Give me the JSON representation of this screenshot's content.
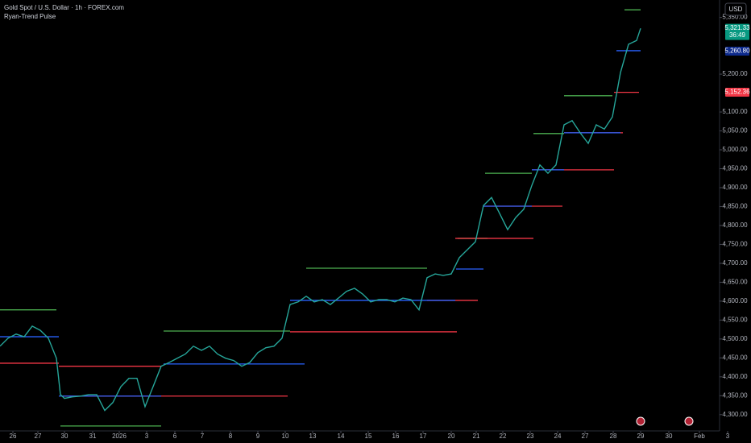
{
  "chart_data": {
    "type": "line",
    "title": "Gold Spot / U.S. Dollar · 1h · FOREX.com",
    "indicator": "Ryan-Trend Pulse",
    "currency": "USD",
    "countdown": "36:49",
    "color": "#26a69a",
    "x": [
      0,
      1,
      2,
      3,
      4,
      5,
      6,
      7,
      7.5,
      8,
      9,
      10,
      11,
      12,
      13,
      14,
      15,
      16,
      17,
      18,
      19,
      20,
      21,
      22,
      23,
      24,
      25,
      26,
      27,
      28,
      29,
      30,
      31,
      32,
      33,
      34,
      35,
      36,
      37,
      38,
      39,
      40,
      41,
      42,
      43,
      44,
      45,
      46,
      47,
      48,
      49,
      50,
      51,
      52,
      53,
      54,
      55,
      56,
      57,
      58,
      59,
      60,
      61,
      62,
      63,
      64,
      65,
      66,
      67,
      68,
      69,
      70,
      71,
      72,
      73,
      74,
      75,
      76,
      77,
      78,
      79,
      79.5
    ],
    "values": [
      4481,
      4502,
      4513,
      4506,
      4534,
      4523,
      4502,
      4449,
      4353,
      4343,
      4347,
      4349,
      4353,
      4353,
      4311,
      4332,
      4374,
      4396,
      4396,
      4321,
      4374,
      4428,
      4438,
      4449,
      4460,
      4481,
      4470,
      4481,
      4460,
      4449,
      4443,
      4428,
      4438,
      4464,
      4477,
      4481,
      4502,
      4591,
      4598,
      4613,
      4598,
      4604,
      4591,
      4608,
      4626,
      4634,
      4619,
      4598,
      4604,
      4604,
      4598,
      4608,
      4604,
      4577,
      4662,
      4672,
      4668,
      4672,
      4715,
      4736,
      4757,
      4853,
      4874,
      4832,
      4789,
      4821,
      4843,
      4906,
      4960,
      4938,
      4960,
      5066,
      5077,
      5045,
      5017,
      5066,
      5055,
      5087,
      5204,
      5279,
      5289,
      5321
    ],
    "levels": [
      {
        "x": [
          0,
          7
        ],
        "value": 4577,
        "color": "#4caf50"
      },
      {
        "x": [
          7.5,
          20
        ],
        "value": 4270,
        "color": "#4caf50"
      },
      {
        "x": [
          20.3,
          36
        ],
        "value": 4521,
        "color": "#4caf50"
      },
      {
        "x": [
          38,
          53
        ],
        "value": 4687,
        "color": "#4caf50"
      },
      {
        "x": [
          56.8,
          60.5
        ],
        "value": 4766,
        "color": "#4caf50"
      },
      {
        "x": [
          60.2,
          66
        ],
        "value": 4938,
        "color": "#4caf50"
      },
      {
        "x": [
          66.2,
          70
        ],
        "value": 5043,
        "color": "#4caf50"
      },
      {
        "x": [
          70,
          76
        ],
        "value": 5143,
        "color": "#4caf50"
      },
      {
        "x": [
          77.5,
          79.5
        ],
        "value": 5370,
        "color": "#4caf50"
      },
      {
        "x": [
          0,
          7.3
        ],
        "value": 4436,
        "color": "#f23645"
      },
      {
        "x": [
          7.3,
          20
        ],
        "value": 4428,
        "color": "#f23645"
      },
      {
        "x": [
          7.8,
          35.7
        ],
        "value": 4349,
        "color": "#f23645"
      },
      {
        "x": [
          36,
          56.7
        ],
        "value": 4519,
        "color": "#f23645"
      },
      {
        "x": [
          53,
          59.3
        ],
        "value": 4602,
        "color": "#f23645"
      },
      {
        "x": [
          56.5,
          66.2
        ],
        "value": 4766,
        "color": "#f23645"
      },
      {
        "x": [
          60,
          69.8
        ],
        "value": 4851,
        "color": "#f23645"
      },
      {
        "x": [
          66,
          76.2
        ],
        "value": 4947,
        "color": "#f23645"
      },
      {
        "x": [
          70,
          77.3
        ],
        "value": 5045,
        "color": "#f23645"
      },
      {
        "x": [
          76.2,
          79.3
        ],
        "value": 5152,
        "color": "#f23645"
      },
      {
        "x": [
          0,
          7.3
        ],
        "value": 4506,
        "color": "#2962ff"
      },
      {
        "x": [
          7.3,
          20
        ],
        "value": 4349,
        "color": "#2962ff"
      },
      {
        "x": [
          20.3,
          37.8
        ],
        "value": 4434,
        "color": "#2962ff"
      },
      {
        "x": [
          36,
          56.5
        ],
        "value": 4602,
        "color": "#2962ff"
      },
      {
        "x": [
          56.6,
          60
        ],
        "value": 4685,
        "color": "#2962ff"
      },
      {
        "x": [
          60,
          66
        ],
        "value": 4851,
        "color": "#2962ff"
      },
      {
        "x": [
          66,
          70
        ],
        "value": 4947,
        "color": "#2962ff"
      },
      {
        "x": [
          70,
          77
        ],
        "value": 5045,
        "color": "#2962ff"
      },
      {
        "x": [
          76.5,
          79.5
        ],
        "value": 5262,
        "color": "#2962ff"
      }
    ],
    "price_labels": [
      {
        "value": 5321.33,
        "label": "5,321.33",
        "color": "#089981"
      },
      {
        "value": 5260.8,
        "label": "5,260.80",
        "color": "#0d2a8c"
      },
      {
        "value": 5152.36,
        "label": "5,152.36",
        "color": "#f23645"
      }
    ],
    "xlim": [
      0,
      93.2
    ],
    "xticks": [
      {
        "value": 1.6,
        "label": "26"
      },
      {
        "value": 4.7,
        "label": "27"
      },
      {
        "value": 8.0,
        "label": "30"
      },
      {
        "value": 11.5,
        "label": "31"
      },
      {
        "value": 14.8,
        "label": "2026"
      },
      {
        "value": 18.2,
        "label": "3"
      },
      {
        "value": 21.7,
        "label": "6"
      },
      {
        "value": 25.1,
        "label": "7"
      },
      {
        "value": 28.6,
        "label": "8"
      },
      {
        "value": 32.0,
        "label": "9"
      },
      {
        "value": 35.4,
        "label": "10"
      },
      {
        "value": 38.8,
        "label": "13"
      },
      {
        "value": 42.3,
        "label": "14"
      },
      {
        "value": 45.7,
        "label": "15"
      },
      {
        "value": 49.1,
        "label": "16"
      },
      {
        "value": 52.5,
        "label": "17"
      },
      {
        "value": 56.0,
        "label": "20"
      },
      {
        "value": 59.1,
        "label": "21"
      },
      {
        "value": 62.4,
        "label": "22"
      },
      {
        "value": 65.8,
        "label": "23"
      },
      {
        "value": 69.2,
        "label": "24"
      },
      {
        "value": 72.6,
        "label": "27"
      },
      {
        "value": 76.1,
        "label": "28"
      },
      {
        "value": 79.5,
        "label": "29"
      },
      {
        "value": 83.0,
        "label": "30"
      },
      {
        "value": 86.8,
        "label": "Feb"
      },
      {
        "value": 90.3,
        "label": "3"
      }
    ],
    "ylim": [
      4257,
      5396
    ],
    "yticks": [
      {
        "value": 4300,
        "label": "4,300.00"
      },
      {
        "value": 4350,
        "label": "4,350.00"
      },
      {
        "value": 4400,
        "label": "4,400.00"
      },
      {
        "value": 4450,
        "label": "4,450.00"
      },
      {
        "value": 4500,
        "label": "4,500.00"
      },
      {
        "value": 4550,
        "label": "4,550.00"
      },
      {
        "value": 4600,
        "label": "4,600.00"
      },
      {
        "value": 4650,
        "label": "4,650.00"
      },
      {
        "value": 4700,
        "label": "4,700.00"
      },
      {
        "value": 4750,
        "label": "4,750.00"
      },
      {
        "value": 4800,
        "label": "4,800.00"
      },
      {
        "value": 4850,
        "label": "4,850.00"
      },
      {
        "value": 4900,
        "label": "4,900.00"
      },
      {
        "value": 4950,
        "label": "4,950.00"
      },
      {
        "value": 5000,
        "label": "5,000.00"
      },
      {
        "value": 5050,
        "label": "5,050.00"
      },
      {
        "value": 5100,
        "label": "5,100.00"
      },
      {
        "value": 5200,
        "label": "5,200.00"
      },
      {
        "value": 5350,
        "label": "5,350.00"
      }
    ]
  }
}
